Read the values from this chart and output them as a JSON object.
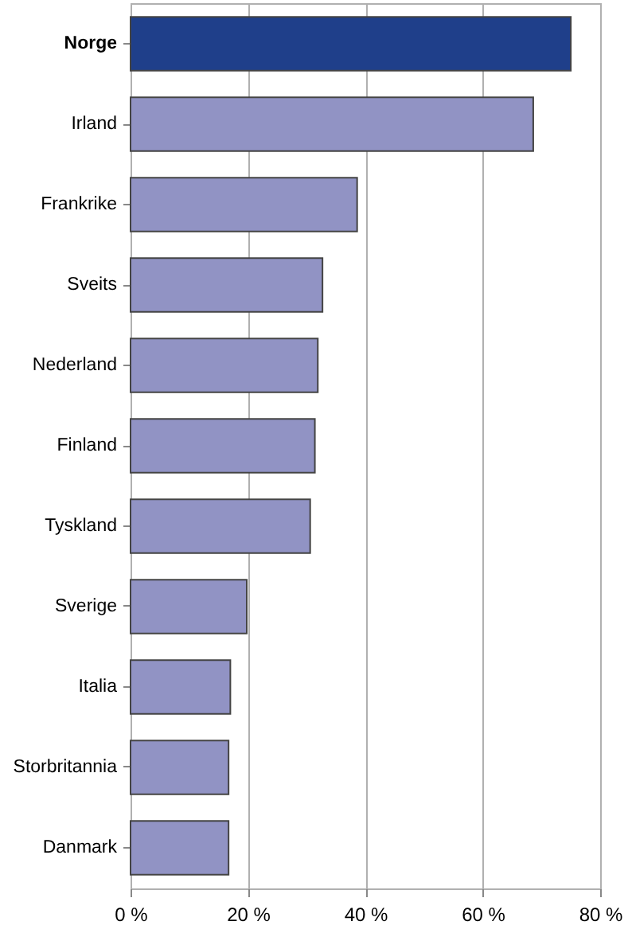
{
  "chart_data": {
    "type": "bar",
    "orientation": "horizontal",
    "categories": [
      "Norge",
      "Irland",
      "Frankrike",
      "Sveits",
      "Nederland",
      "Finland",
      "Tyskland",
      "Sverige",
      "Italia",
      "Storbritannia",
      "Danmark"
    ],
    "values": [
      75,
      68.6,
      38.6,
      32.7,
      31.9,
      31.4,
      30.6,
      19.8,
      17.0,
      16.7,
      16.7
    ],
    "colors": [
      "#1f3f8a",
      "#9193c4",
      "#9193c4",
      "#9193c4",
      "#9193c4",
      "#9193c4",
      "#9193c4",
      "#9193c4",
      "#9193c4",
      "#9193c4",
      "#9193c4"
    ],
    "xlim": [
      0,
      80
    ],
    "xticks": [
      {
        "value": 0,
        "label": "0 %"
      },
      {
        "value": 20,
        "label": "20 %"
      },
      {
        "value": 40,
        "label": "40 %"
      },
      {
        "value": 60,
        "label": "60 %"
      },
      {
        "value": 80,
        "label": "80 %"
      }
    ],
    "grid": "x"
  }
}
